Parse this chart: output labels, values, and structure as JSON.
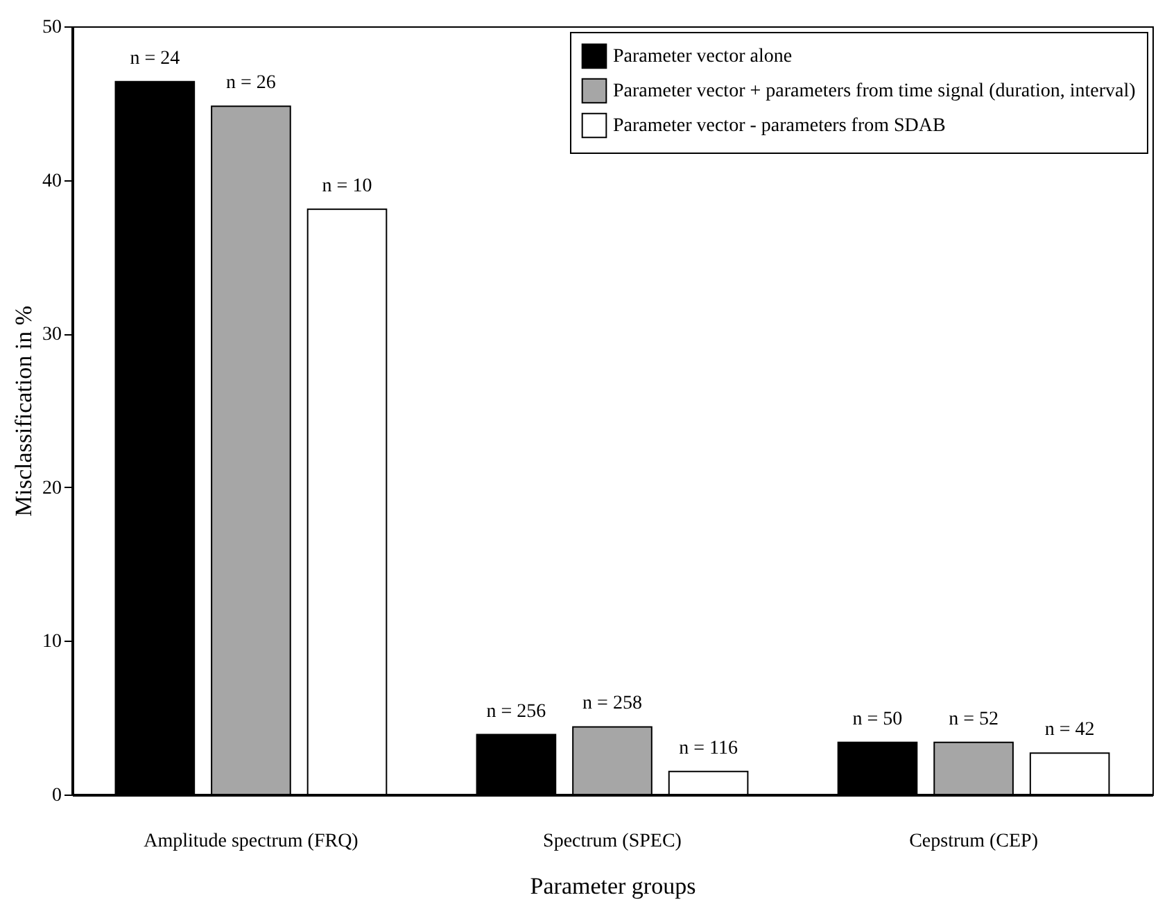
{
  "chart_data": {
    "type": "bar",
    "xlabel": "Parameter groups",
    "ylabel": "Misclassification in %",
    "categories": [
      "Amplitude spectrum (FRQ)",
      "Spectrum (SPEC)",
      "Cepstrum (CEP)"
    ],
    "series": [
      {
        "name": "Parameter vector alone",
        "color": "#000000",
        "values": [
          46.4,
          3.9,
          3.4
        ]
      },
      {
        "name": "Parameter vector + parameters from time signal (duration, interval)",
        "color": "#a6a6a6",
        "values": [
          44.8,
          4.4,
          3.4
        ]
      },
      {
        "name": "Parameter vector - parameters from SDAB",
        "color": "#ffffff",
        "values": [
          38.1,
          1.5,
          2.7
        ]
      }
    ],
    "ylim": [
      0,
      50
    ],
    "yticks": [
      0,
      10,
      20,
      30,
      40,
      50
    ],
    "grid": false,
    "legend": "top right",
    "annotations": [
      "n = 24",
      "n = 26",
      "n = 10",
      "n = 256",
      "n = 258",
      "n = 116",
      "n = 50",
      "n = 52",
      "n = 42"
    ]
  }
}
